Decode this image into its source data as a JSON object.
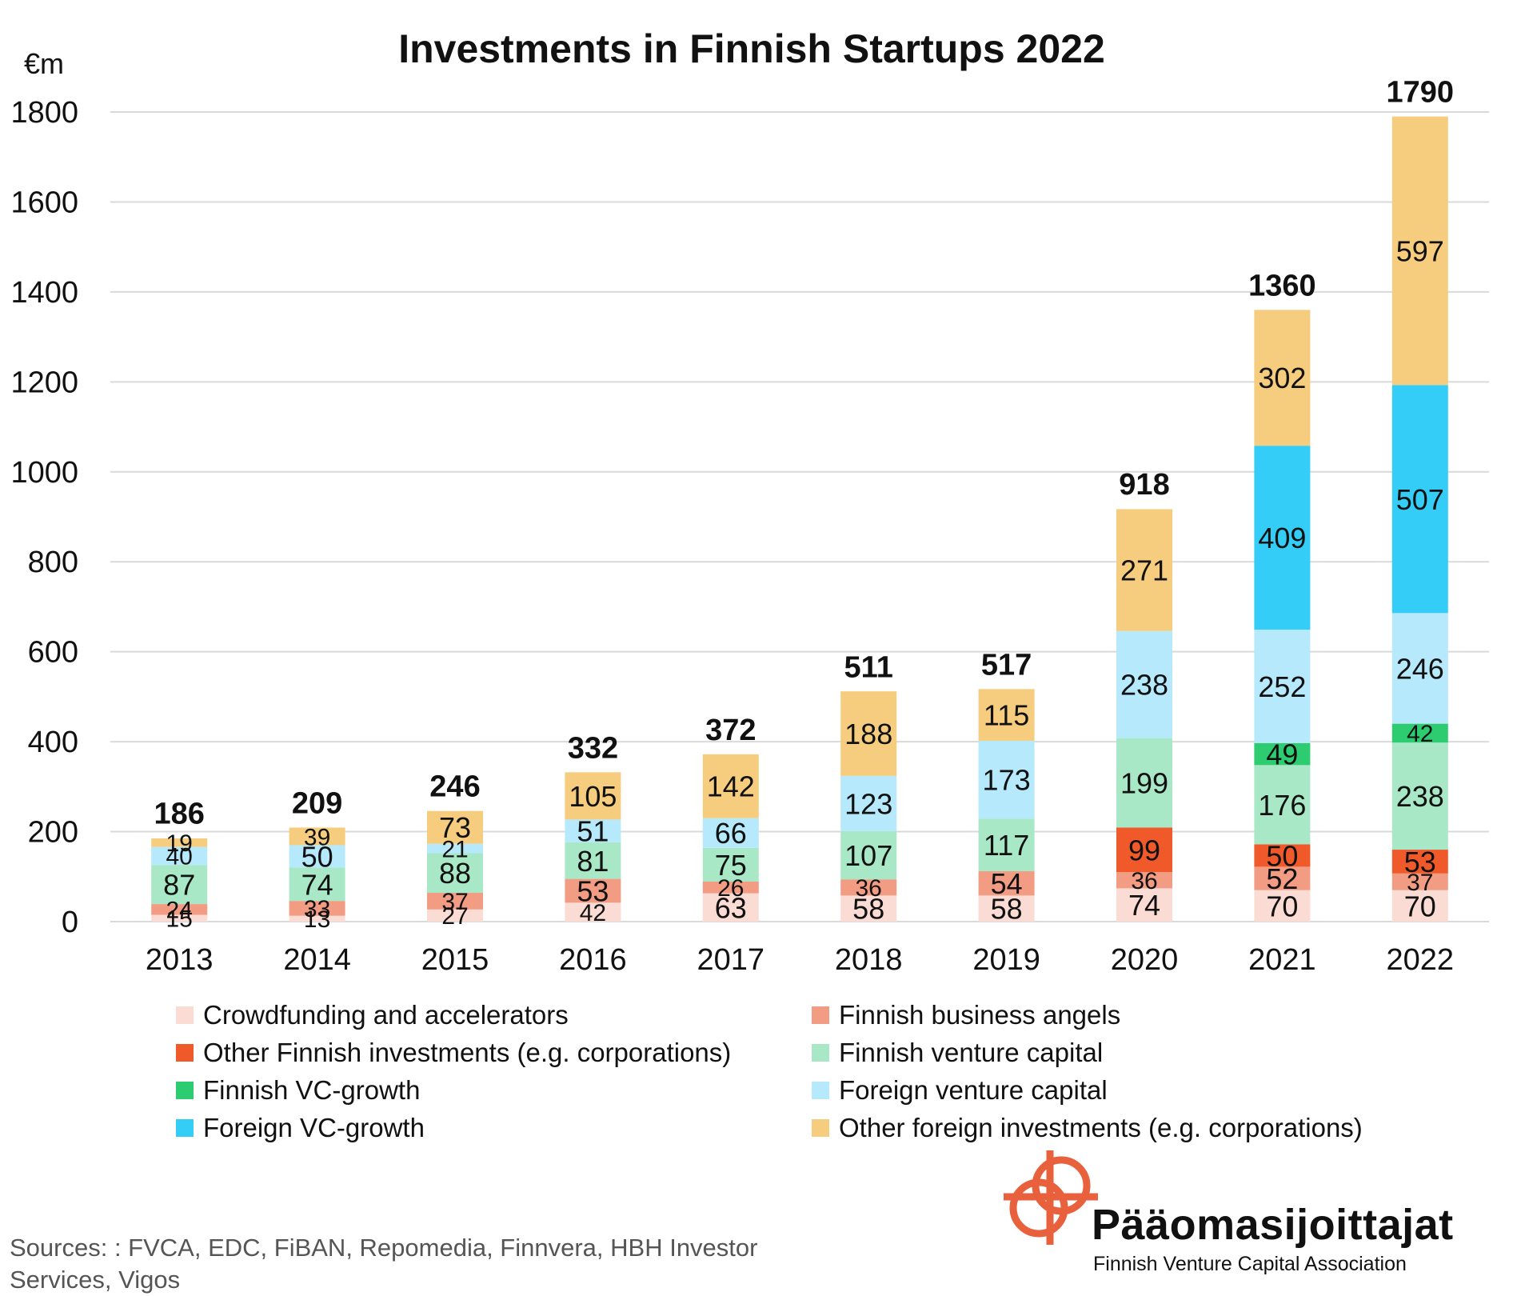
{
  "chart_data": {
    "type": "bar",
    "stacked": true,
    "title": "Investments in Finnish Startups 2022",
    "ylabel": "€m",
    "xlabel": "",
    "ylim": [
      0,
      1800
    ],
    "yticks": [
      0,
      200,
      400,
      600,
      800,
      1000,
      1200,
      1400,
      1600,
      1800
    ],
    "grid": true,
    "legend_position": "bottom",
    "categories": [
      "2013",
      "2014",
      "2015",
      "2016",
      "2017",
      "2018",
      "2019",
      "2020",
      "2021",
      "2022"
    ],
    "totals": [
      186,
      209,
      246,
      332,
      372,
      511,
      517,
      918,
      1360,
      1790
    ],
    "series": [
      {
        "name": "Crowdfunding and accelerators",
        "color": "#fbdcd4",
        "values": [
          15,
          13,
          27,
          42,
          63,
          58,
          58,
          74,
          70,
          70
        ]
      },
      {
        "name": "Finnish business angels",
        "color": "#f29c84",
        "values": [
          24,
          33,
          37,
          53,
          26,
          36,
          54,
          36,
          52,
          37
        ]
      },
      {
        "name": "Other Finnish investments (e.g. corporations)",
        "color": "#f05a2a",
        "values": [
          0,
          0,
          0,
          0,
          0,
          0,
          0,
          99,
          50,
          53
        ]
      },
      {
        "name": "Finnish venture capital",
        "color": "#a8e8c6",
        "values": [
          87,
          74,
          88,
          81,
          75,
          107,
          117,
          199,
          176,
          238
        ]
      },
      {
        "name": "Finnish VC-growth",
        "color": "#2ecc71",
        "values": [
          0,
          0,
          0,
          0,
          0,
          0,
          0,
          0,
          49,
          42
        ]
      },
      {
        "name": "Foreign venture capital",
        "color": "#b5e9fb",
        "values": [
          40,
          50,
          21,
          51,
          66,
          123,
          173,
          238,
          252,
          246
        ]
      },
      {
        "name": "Foreign VC-growth",
        "color": "#33cdf7",
        "values": [
          0,
          0,
          0,
          0,
          0,
          0,
          0,
          0,
          409,
          507
        ]
      },
      {
        "name": "Other foreign investments (e.g. corporations)",
        "color": "#f6cd7e",
        "values": [
          19,
          39,
          73,
          105,
          142,
          188,
          115,
          271,
          302,
          597
        ]
      }
    ]
  },
  "sources": "Sources: : FVCA, EDC, FiBAN, Repomedia, Finnvera, HBH Investor Services, Vigos",
  "logo": {
    "name": "Pääomasijoittajat",
    "subtitle": "Finnish Venture Capital Association",
    "color": "#e8603c"
  }
}
